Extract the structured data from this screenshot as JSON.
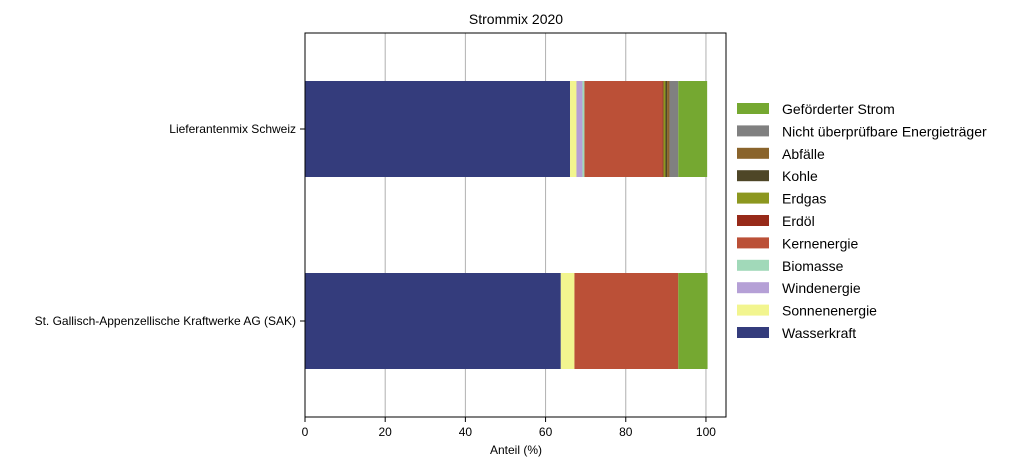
{
  "chart_data": {
    "type": "bar",
    "orientation": "horizontal",
    "stacked": true,
    "title": "Strommix 2020",
    "xlabel": "Anteil (%)",
    "ylabel": "",
    "xlim": [
      0,
      105
    ],
    "xticks": [
      0,
      20,
      40,
      60,
      80,
      100
    ],
    "grid": "vertical",
    "legend_position": "right",
    "categories": [
      "Lieferantenmix Schweiz",
      "St. Gallisch-Appenzellische Kraftwerke AG (SAK)"
    ],
    "series": [
      {
        "name": "Wasserkraft",
        "color": "#343c7c",
        "values": [
          66.1,
          63.8
        ]
      },
      {
        "name": "Sonnenenergie",
        "color": "#f2f58f",
        "values": [
          1.6,
          3.4
        ]
      },
      {
        "name": "Windenergie",
        "color": "#b5a0d6",
        "values": [
          1.5,
          0
        ]
      },
      {
        "name": "Biomasse",
        "color": "#a1d9b9",
        "values": [
          0.5,
          0
        ]
      },
      {
        "name": "Kernenergie",
        "color": "#bb5037",
        "values": [
          19.4,
          25.9
        ]
      },
      {
        "name": "Erdöl",
        "color": "#972a19",
        "values": [
          0.3,
          0
        ]
      },
      {
        "name": "Erdgas",
        "color": "#8c971f",
        "values": [
          0.5,
          0
        ]
      },
      {
        "name": "Kohle",
        "color": "#4e4627",
        "values": [
          0.4,
          0
        ]
      },
      {
        "name": "Abfälle",
        "color": "#8a642c",
        "values": [
          0.6,
          0
        ]
      },
      {
        "name": "Nicht überprüfbare Energieträger",
        "color": "#808080",
        "values": [
          2.2,
          0
        ]
      },
      {
        "name": "Geförderter Strom",
        "color": "#75a831",
        "values": [
          7.2,
          7.3
        ]
      }
    ]
  }
}
